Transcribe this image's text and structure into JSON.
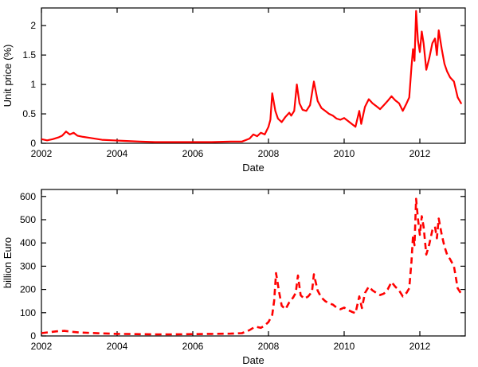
{
  "figure": {
    "background": "#ffffff",
    "axis_color": "#000000"
  },
  "chart_data": [
    {
      "id": "unit-price",
      "type": "line",
      "title": "",
      "xlabel": "Date",
      "ylabel": "Unit price (%)",
      "xlim": [
        2002,
        2013.2
      ],
      "ylim": [
        0,
        2.3
      ],
      "xticks": [
        2002,
        2004,
        2006,
        2008,
        2010,
        2012
      ],
      "xtick_labels": [
        "2002",
        "2004",
        "2006",
        "2008",
        "2010",
        "2012"
      ],
      "yticks": [
        0,
        0.5,
        1,
        1.5,
        2
      ],
      "ytick_labels": [
        "0",
        "0.5",
        "1",
        "1.5",
        "2"
      ],
      "grid": false,
      "legend": "none",
      "line_style": "solid",
      "color": "#ff0000",
      "points": [
        [
          2002.0,
          0.07
        ],
        [
          2002.15,
          0.05
        ],
        [
          2002.3,
          0.07
        ],
        [
          2002.45,
          0.1
        ],
        [
          2002.55,
          0.13
        ],
        [
          2002.65,
          0.2
        ],
        [
          2002.75,
          0.15
        ],
        [
          2002.85,
          0.18
        ],
        [
          2002.95,
          0.13
        ],
        [
          2003.1,
          0.11
        ],
        [
          2003.3,
          0.09
        ],
        [
          2003.6,
          0.06
        ],
        [
          2003.9,
          0.05
        ],
        [
          2004.2,
          0.04
        ],
        [
          2004.6,
          0.03
        ],
        [
          2005.0,
          0.02
        ],
        [
          2005.5,
          0.02
        ],
        [
          2006.0,
          0.02
        ],
        [
          2006.5,
          0.02
        ],
        [
          2007.0,
          0.03
        ],
        [
          2007.3,
          0.03
        ],
        [
          2007.5,
          0.08
        ],
        [
          2007.6,
          0.15
        ],
        [
          2007.7,
          0.12
        ],
        [
          2007.8,
          0.18
        ],
        [
          2007.9,
          0.15
        ],
        [
          2008.0,
          0.28
        ],
        [
          2008.05,
          0.4
        ],
        [
          2008.1,
          0.85
        ],
        [
          2008.18,
          0.55
        ],
        [
          2008.25,
          0.42
        ],
        [
          2008.35,
          0.36
        ],
        [
          2008.45,
          0.45
        ],
        [
          2008.55,
          0.52
        ],
        [
          2008.6,
          0.47
        ],
        [
          2008.68,
          0.55
        ],
        [
          2008.75,
          1.0
        ],
        [
          2008.82,
          0.68
        ],
        [
          2008.9,
          0.57
        ],
        [
          2009.0,
          0.55
        ],
        [
          2009.1,
          0.65
        ],
        [
          2009.2,
          1.05
        ],
        [
          2009.3,
          0.72
        ],
        [
          2009.4,
          0.6
        ],
        [
          2009.5,
          0.55
        ],
        [
          2009.6,
          0.5
        ],
        [
          2009.7,
          0.47
        ],
        [
          2009.8,
          0.42
        ],
        [
          2009.9,
          0.4
        ],
        [
          2010.0,
          0.43
        ],
        [
          2010.1,
          0.38
        ],
        [
          2010.2,
          0.33
        ],
        [
          2010.3,
          0.28
        ],
        [
          2010.4,
          0.55
        ],
        [
          2010.45,
          0.33
        ],
        [
          2010.55,
          0.62
        ],
        [
          2010.65,
          0.75
        ],
        [
          2010.75,
          0.68
        ],
        [
          2010.85,
          0.63
        ],
        [
          2010.95,
          0.58
        ],
        [
          2011.05,
          0.65
        ],
        [
          2011.15,
          0.72
        ],
        [
          2011.25,
          0.8
        ],
        [
          2011.35,
          0.73
        ],
        [
          2011.45,
          0.68
        ],
        [
          2011.55,
          0.55
        ],
        [
          2011.65,
          0.68
        ],
        [
          2011.72,
          0.78
        ],
        [
          2011.78,
          1.3
        ],
        [
          2011.82,
          1.6
        ],
        [
          2011.86,
          1.4
        ],
        [
          2011.9,
          2.25
        ],
        [
          2011.95,
          1.75
        ],
        [
          2012.0,
          1.55
        ],
        [
          2012.05,
          1.9
        ],
        [
          2012.1,
          1.7
        ],
        [
          2012.17,
          1.25
        ],
        [
          2012.25,
          1.45
        ],
        [
          2012.33,
          1.7
        ],
        [
          2012.4,
          1.78
        ],
        [
          2012.45,
          1.5
        ],
        [
          2012.5,
          1.92
        ],
        [
          2012.58,
          1.6
        ],
        [
          2012.65,
          1.35
        ],
        [
          2012.72,
          1.22
        ],
        [
          2012.8,
          1.12
        ],
        [
          2012.9,
          1.05
        ],
        [
          2013.0,
          0.78
        ],
        [
          2013.1,
          0.67
        ]
      ]
    },
    {
      "id": "market-size",
      "type": "line",
      "title": "",
      "xlabel": "Date",
      "ylabel": "billion Euro",
      "xlim": [
        2002,
        2013.2
      ],
      "ylim": [
        0,
        630
      ],
      "xticks": [
        2002,
        2004,
        2006,
        2008,
        2010,
        2012
      ],
      "xtick_labels": [
        "2002",
        "2004",
        "2006",
        "2008",
        "2010",
        "2012"
      ],
      "yticks": [
        0,
        100,
        200,
        300,
        400,
        500,
        600
      ],
      "ytick_labels": [
        "0",
        "100",
        "200",
        "300",
        "400",
        "500",
        "600"
      ],
      "grid": false,
      "legend": "none",
      "line_style": "dashed",
      "color": "#ff0000",
      "points": [
        [
          2002.0,
          12
        ],
        [
          2002.2,
          16
        ],
        [
          2002.4,
          20
        ],
        [
          2002.6,
          22
        ],
        [
          2002.8,
          18
        ],
        [
          2003.0,
          15
        ],
        [
          2003.3,
          13
        ],
        [
          2003.6,
          11
        ],
        [
          2004.0,
          9
        ],
        [
          2004.5,
          8
        ],
        [
          2005.0,
          7
        ],
        [
          2005.5,
          7
        ],
        [
          2006.0,
          8
        ],
        [
          2006.5,
          9
        ],
        [
          2007.0,
          10
        ],
        [
          2007.3,
          12
        ],
        [
          2007.5,
          25
        ],
        [
          2007.65,
          40
        ],
        [
          2007.8,
          35
        ],
        [
          2007.9,
          45
        ],
        [
          2008.0,
          60
        ],
        [
          2008.1,
          90
        ],
        [
          2008.15,
          150
        ],
        [
          2008.2,
          270
        ],
        [
          2008.28,
          190
        ],
        [
          2008.35,
          130
        ],
        [
          2008.45,
          115
        ],
        [
          2008.55,
          145
        ],
        [
          2008.65,
          165
        ],
        [
          2008.72,
          185
        ],
        [
          2008.78,
          260
        ],
        [
          2008.85,
          175
        ],
        [
          2008.95,
          160
        ],
        [
          2009.05,
          170
        ],
        [
          2009.15,
          190
        ],
        [
          2009.2,
          265
        ],
        [
          2009.3,
          195
        ],
        [
          2009.4,
          165
        ],
        [
          2009.5,
          150
        ],
        [
          2009.6,
          140
        ],
        [
          2009.7,
          135
        ],
        [
          2009.8,
          122
        ],
        [
          2009.9,
          115
        ],
        [
          2010.0,
          122
        ],
        [
          2010.1,
          112
        ],
        [
          2010.2,
          104
        ],
        [
          2010.3,
          98
        ],
        [
          2010.4,
          170
        ],
        [
          2010.47,
          120
        ],
        [
          2010.55,
          185
        ],
        [
          2010.65,
          212
        ],
        [
          2010.75,
          196
        ],
        [
          2010.85,
          185
        ],
        [
          2010.95,
          176
        ],
        [
          2011.05,
          182
        ],
        [
          2011.15,
          200
        ],
        [
          2011.25,
          232
        ],
        [
          2011.35,
          212
        ],
        [
          2011.45,
          196
        ],
        [
          2011.55,
          170
        ],
        [
          2011.65,
          186
        ],
        [
          2011.72,
          205
        ],
        [
          2011.78,
          320
        ],
        [
          2011.82,
          430
        ],
        [
          2011.86,
          390
        ],
        [
          2011.9,
          590
        ],
        [
          2011.95,
          505
        ],
        [
          2012.0,
          435
        ],
        [
          2012.05,
          515
        ],
        [
          2012.1,
          470
        ],
        [
          2012.17,
          350
        ],
        [
          2012.25,
          395
        ],
        [
          2012.33,
          455
        ],
        [
          2012.4,
          470
        ],
        [
          2012.45,
          420
        ],
        [
          2012.5,
          505
        ],
        [
          2012.58,
          435
        ],
        [
          2012.65,
          385
        ],
        [
          2012.72,
          350
        ],
        [
          2012.8,
          330
        ],
        [
          2012.9,
          300
        ],
        [
          2013.0,
          205
        ],
        [
          2013.1,
          180
        ]
      ]
    }
  ]
}
